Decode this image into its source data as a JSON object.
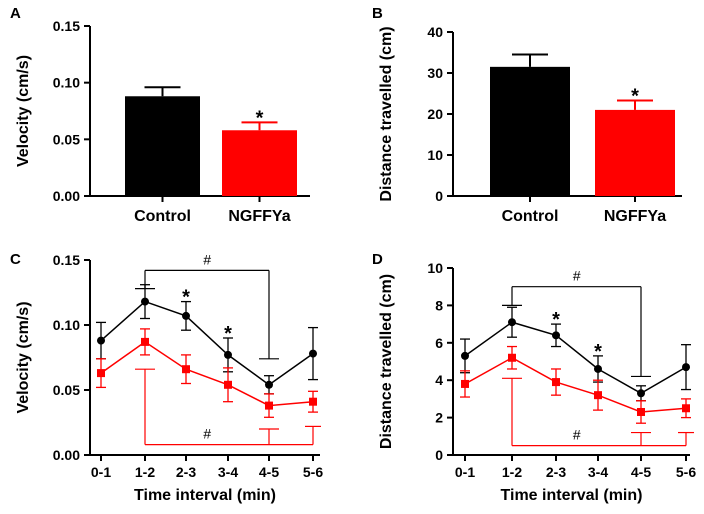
{
  "colors": {
    "control": "#000000",
    "ngffya": "#ff0000"
  },
  "chart_data": [
    {
      "panel": "A",
      "type": "bar",
      "categories": [
        "Control",
        "NGFFYa"
      ],
      "values": [
        0.088,
        0.058
      ],
      "errors": [
        0.008,
        0.007
      ],
      "ylabel": "Velocity (cm/s)",
      "ylim": [
        0,
        0.15
      ],
      "yticks": [
        "0.00",
        "0.05",
        "0.10",
        "0.15"
      ],
      "annotations": [
        {
          "category_index": 1,
          "text": "*"
        }
      ]
    },
    {
      "panel": "B",
      "type": "bar",
      "categories": [
        "Control",
        "NGFFYa"
      ],
      "values": [
        31.5,
        21.0
      ],
      "errors": [
        3.0,
        2.3
      ],
      "ylabel": "Distance travelled (cm)",
      "ylim": [
        0,
        40
      ],
      "yticks": [
        "0",
        "10",
        "20",
        "30",
        "40"
      ],
      "annotations": [
        {
          "category_index": 1,
          "text": "*"
        }
      ]
    },
    {
      "panel": "C",
      "type": "line",
      "categories": [
        "0-1",
        "1-2",
        "2-3",
        "3-4",
        "4-5",
        "5-6"
      ],
      "xlabel": "Time interval (min)",
      "ylabel": "Velocity (cm/s)",
      "ylim": [
        0,
        0.15
      ],
      "yticks": [
        "0.00",
        "0.05",
        "0.10",
        "0.15"
      ],
      "series": [
        {
          "color": "#000000",
          "marker": "circle",
          "values": [
            0.088,
            0.118,
            0.107,
            0.077,
            0.054,
            0.078
          ],
          "errors": [
            0.014,
            0.013,
            0.011,
            0.013,
            0.007,
            0.02
          ]
        },
        {
          "color": "#ff0000",
          "marker": "square",
          "values": [
            0.063,
            0.087,
            0.066,
            0.054,
            0.038,
            0.041
          ],
          "errors": [
            0.011,
            0.01,
            0.011,
            0.013,
            0.009,
            0.008
          ]
        }
      ],
      "star_labels": [
        {
          "category_index": 2,
          "text": "*"
        },
        {
          "category_index": 3,
          "text": "*"
        }
      ],
      "brackets": [
        {
          "series": 0,
          "from": 1,
          "to": 4,
          "y": 0.142,
          "from_drop": 0.128,
          "to_drop": 0.074,
          "text": "#"
        },
        {
          "series": 1,
          "from": 1,
          "to": 4,
          "y": 0.008,
          "from_drop": 0.066,
          "to_drop": 0.02,
          "text": "#",
          "extra_cap": {
            "index": 5,
            "y": 0.022
          }
        }
      ]
    },
    {
      "panel": "D",
      "type": "line",
      "categories": [
        "0-1",
        "1-2",
        "2-3",
        "3-4",
        "4-5",
        "5-6"
      ],
      "xlabel": "Time interval (min)",
      "ylabel": "Distance travelled (cm)",
      "ylim": [
        0,
        10
      ],
      "yticks": [
        "0",
        "2",
        "4",
        "6",
        "8",
        "10"
      ],
      "series": [
        {
          "color": "#000000",
          "marker": "circle",
          "values": [
            5.3,
            7.1,
            6.4,
            4.6,
            3.3,
            4.7
          ],
          "errors": [
            0.9,
            0.8,
            0.6,
            0.7,
            0.4,
            1.2
          ]
        },
        {
          "color": "#ff0000",
          "marker": "square",
          "values": [
            3.8,
            5.2,
            3.9,
            3.2,
            2.3,
            2.5
          ],
          "errors": [
            0.7,
            0.6,
            0.7,
            0.8,
            0.6,
            0.5
          ]
        }
      ],
      "star_labels": [
        {
          "category_index": 2,
          "text": "*"
        },
        {
          "category_index": 3,
          "text": "*"
        }
      ],
      "brackets": [
        {
          "series": 0,
          "from": 1,
          "to": 4,
          "y": 9.0,
          "from_drop": 8.0,
          "to_drop": 4.2,
          "text": "#"
        },
        {
          "series": 1,
          "from": 1,
          "to": 4,
          "y": 0.5,
          "from_drop": 4.1,
          "to_drop": 1.2,
          "text": "#",
          "extra_cap": {
            "index": 5,
            "y": 1.2
          }
        }
      ]
    }
  ]
}
